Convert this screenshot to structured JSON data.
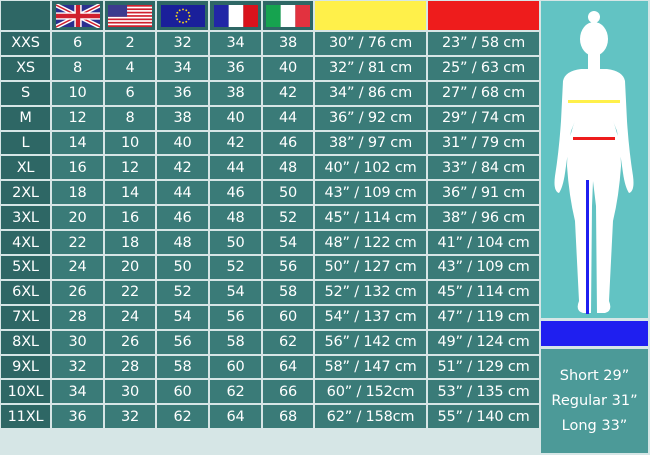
{
  "header": {
    "flags": [
      {
        "icon": "uk-flag-icon",
        "label": "UK"
      },
      {
        "icon": "us-flag-icon",
        "label": "US"
      },
      {
        "icon": "eu-flag-icon",
        "label": "EU"
      },
      {
        "icon": "france-flag-icon",
        "label": "FR"
      },
      {
        "icon": "italy-flag-icon",
        "label": "IT"
      }
    ],
    "swatches": [
      {
        "name": "bust",
        "color": "#fff04a"
      },
      {
        "name": "waist",
        "color": "#ee1c1c"
      }
    ]
  },
  "rows": [
    [
      "XXS",
      "6",
      "2",
      "32",
      "34",
      "38",
      "30” / 76 cm",
      "23” / 58 cm"
    ],
    [
      "XS",
      "8",
      "4",
      "34",
      "36",
      "40",
      "32” / 81 cm",
      "25” / 63 cm"
    ],
    [
      "S",
      "10",
      "6",
      "36",
      "38",
      "42",
      "34” / 86 cm",
      "27” / 68 cm"
    ],
    [
      "M",
      "12",
      "8",
      "38",
      "40",
      "44",
      "36” / 92 cm",
      "29” / 74 cm"
    ],
    [
      "L",
      "14",
      "10",
      "40",
      "42",
      "46",
      "38” / 97 cm",
      "31” / 79 cm"
    ],
    [
      "XL",
      "16",
      "12",
      "42",
      "44",
      "48",
      "40” / 102 cm",
      "33” / 84 cm"
    ],
    [
      "2XL",
      "18",
      "14",
      "44",
      "46",
      "50",
      "43” / 109 cm",
      "36” / 91 cm"
    ],
    [
      "3XL",
      "20",
      "16",
      "46",
      "48",
      "52",
      "45” / 114 cm",
      "38” / 96 cm"
    ],
    [
      "4XL",
      "22",
      "18",
      "48",
      "50",
      "54",
      "48” / 122 cm",
      "41” / 104 cm"
    ],
    [
      "5XL",
      "24",
      "20",
      "50",
      "52",
      "56",
      "50” / 127 cm",
      "43” / 109 cm"
    ],
    [
      "6XL",
      "26",
      "22",
      "52",
      "54",
      "58",
      "52” / 132 cm",
      "45” / 114 cm"
    ],
    [
      "7XL",
      "28",
      "24",
      "54",
      "56",
      "60",
      "54” / 137 cm",
      "47” / 119 cm"
    ],
    [
      "8XL",
      "30",
      "26",
      "56",
      "58",
      "62",
      "56” / 142 cm",
      "49” / 124 cm"
    ],
    [
      "9XL",
      "32",
      "28",
      "58",
      "60",
      "64",
      "58” / 147 cm",
      "51” / 129 cm"
    ],
    [
      "10XL",
      "34",
      "30",
      "60",
      "62",
      "66",
      "60” / 152cm",
      "53” / 135 cm"
    ],
    [
      "11XL",
      "36",
      "32",
      "62",
      "64",
      "68",
      "62” / 158cm",
      "55” / 140 cm"
    ]
  ],
  "inseam": {
    "color": "#1f1ff0",
    "lines": [
      "Short 29”",
      "Regular 31”",
      "Long 33”"
    ]
  },
  "colors": {
    "cell": "#3a7b78",
    "size_cell": "#2e6765",
    "figure_bg": "#62c3c3"
  }
}
